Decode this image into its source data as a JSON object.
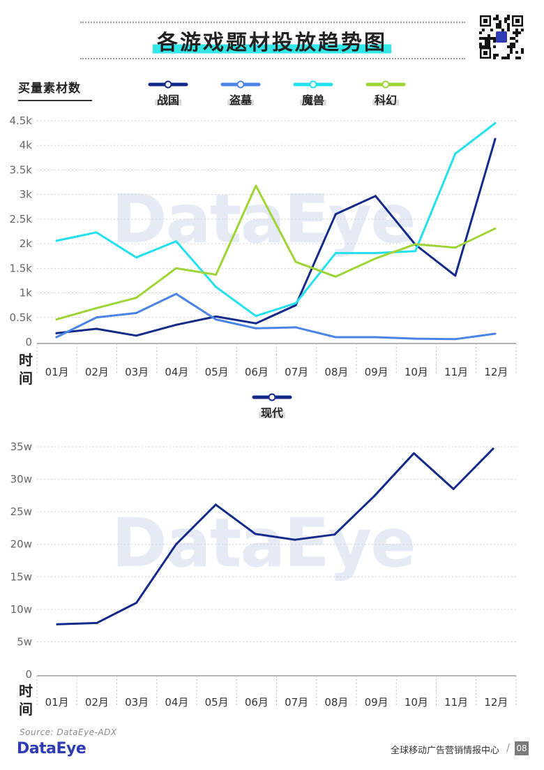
{
  "header": {
    "title": "各游戏题材投放趋势图"
  },
  "y_axis_title": "买量素材数",
  "time_label": "时间",
  "watermark": "DataEye",
  "footer": {
    "source": "Source: DataEye-ADX",
    "brand": "DataEye",
    "report": "全球移动广告营销情报中心",
    "page": "08"
  },
  "colors": {
    "zhanguo": "#142a8a",
    "daomu": "#4a84e6",
    "moshou": "#24e0ec",
    "kehuan": "#9ed436",
    "xiandai": "#142a8a",
    "accent": "#33e6e8"
  },
  "chart_data": [
    {
      "type": "line",
      "categories": [
        "01月",
        "02月",
        "03月",
        "04月",
        "05月",
        "06月",
        "07月",
        "08月",
        "09月",
        "10月",
        "11月",
        "12月"
      ],
      "ylim": [
        0,
        4500
      ],
      "yticks": [
        0,
        500,
        1000,
        1500,
        2000,
        2500,
        3000,
        3500,
        4000,
        4500
      ],
      "ytick_labels": [
        "0",
        "0.5k",
        "1k",
        "1.5k",
        "2k",
        "2.5k",
        "3k",
        "3.5k",
        "4k",
        "4.5k"
      ],
      "grid": true,
      "legend_position": "top",
      "series": [
        {
          "name": "战国",
          "color_key": "zhanguo",
          "values": [
            180,
            270,
            130,
            350,
            520,
            380,
            750,
            2600,
            2970,
            1980,
            1350,
            4130
          ]
        },
        {
          "name": "盗墓",
          "color_key": "daomu",
          "values": [
            100,
            500,
            590,
            980,
            460,
            280,
            300,
            100,
            100,
            70,
            60,
            170
          ]
        },
        {
          "name": "魔兽",
          "color_key": "moshou",
          "values": [
            2060,
            2230,
            1720,
            2050,
            1120,
            530,
            790,
            1810,
            1810,
            1850,
            3830,
            4450
          ]
        },
        {
          "name": "科幻",
          "color_key": "kehuan",
          "values": [
            460,
            690,
            900,
            1500,
            1370,
            3180,
            1630,
            1330,
            1700,
            1990,
            1920,
            2310
          ]
        }
      ]
    },
    {
      "type": "line",
      "categories": [
        "01月",
        "02月",
        "03月",
        "04月",
        "05月",
        "06月",
        "07月",
        "08月",
        "09月",
        "10月",
        "11月",
        "12月"
      ],
      "ylim": [
        0,
        350000
      ],
      "yticks": [
        0,
        50000,
        100000,
        150000,
        200000,
        250000,
        300000,
        350000
      ],
      "ytick_labels": [
        "0",
        "5w",
        "10w",
        "15w",
        "20w",
        "25w",
        "30w",
        "35w"
      ],
      "grid": true,
      "legend_position": "top",
      "series": [
        {
          "name": "现代",
          "color_key": "xiandai",
          "values": [
            77000,
            79000,
            110000,
            200000,
            261000,
            216000,
            207000,
            215000,
            274000,
            340000,
            285000,
            347000
          ]
        }
      ]
    }
  ]
}
